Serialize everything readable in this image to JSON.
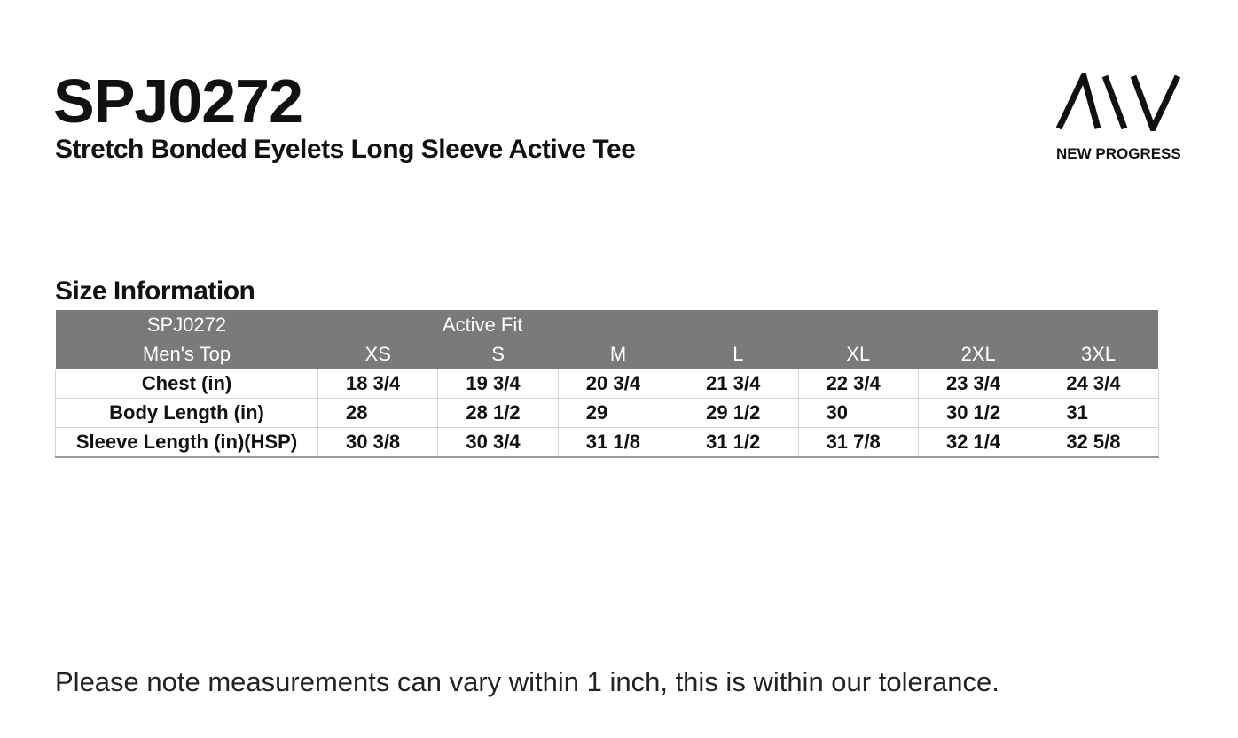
{
  "header": {
    "title": "SPJ0272",
    "subtitle": "Stretch Bonded Eyelets Long Sleeve Active Tee"
  },
  "logo": {
    "text": "NEW PROGRESS"
  },
  "section_title": "Size Information",
  "table": {
    "model": "SPJ0272",
    "fit": "Active Fit",
    "columns": [
      "Men's Top",
      "XS",
      "S",
      "M",
      "L",
      "XL",
      "2XL",
      "3XL"
    ],
    "rows": [
      {
        "label": "Chest (in)",
        "values": [
          "18 3/4",
          "19 3/4",
          "20 3/4",
          "21 3/4",
          "22 3/4",
          "23 3/4",
          "24 3/4"
        ]
      },
      {
        "label": "Body Length (in)",
        "values": [
          "28",
          "28 1/2",
          "29",
          "29 1/2",
          "30",
          "30 1/2",
          "31"
        ]
      },
      {
        "label": "Sleeve Length (in)(HSP)",
        "values": [
          "30 3/8",
          "30 3/4",
          "31 1/8",
          "31 1/2",
          "31 7/8",
          "32 1/4",
          "32 5/8"
        ]
      }
    ]
  },
  "note": "Please note measurements can vary within 1 inch, this is within our tolerance."
}
